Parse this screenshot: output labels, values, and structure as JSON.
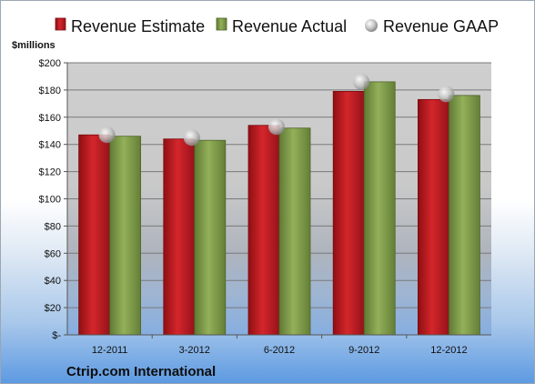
{
  "chart_data": {
    "type": "bar",
    "unit_label": "$millions",
    "company": "Ctrip.com International",
    "categories": [
      "12-2011",
      "3-2012",
      "6-2012",
      "9-2012",
      "12-2012"
    ],
    "series": [
      {
        "name": "Revenue Estimate",
        "kind": "bar",
        "color": "#c0161c",
        "values": [
          147,
          144,
          154,
          179,
          173
        ]
      },
      {
        "name": "Revenue Actual",
        "kind": "bar",
        "color": "#7f9a48",
        "values": [
          146,
          143,
          152,
          186,
          176
        ]
      },
      {
        "name": "Revenue GAAP",
        "kind": "marker",
        "color": "#b8b8b8",
        "values": [
          147,
          145,
          153,
          186,
          177
        ]
      }
    ],
    "ylim": [
      0,
      200
    ],
    "yticks": [
      0,
      20,
      40,
      60,
      80,
      100,
      120,
      140,
      160,
      180,
      200
    ],
    "ytick_labels": [
      "$-",
      "$20",
      "$40",
      "$60",
      "$80",
      "$100",
      "$120",
      "$140",
      "$160",
      "$180",
      "$200"
    ],
    "grid": true,
    "legend": "top"
  }
}
